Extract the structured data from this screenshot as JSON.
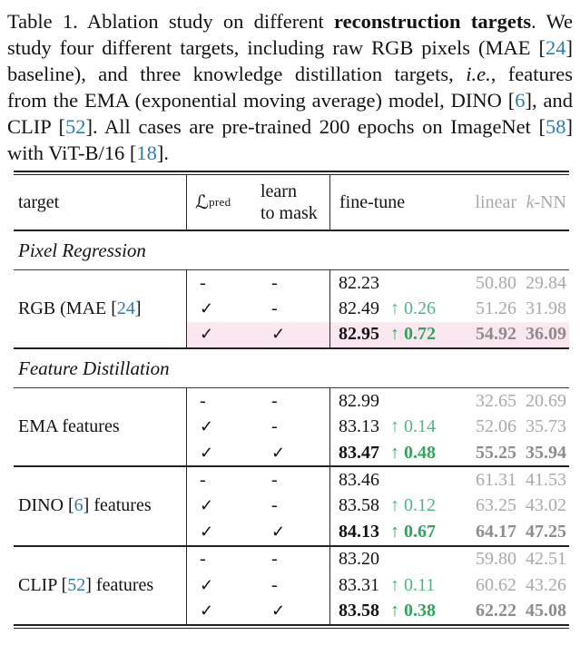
{
  "caption": {
    "lines": [
      [
        {
          "t": "Table 1. Ablation study on different "
        },
        {
          "t": "reconstruction targets",
          "b": true
        },
        {
          "t": ". We"
        }
      ],
      [
        {
          "t": "study four different targets, including raw RGB pixels (MAE ["
        },
        {
          "t": "24",
          "ref": true
        },
        {
          "t": "]"
        }
      ],
      [
        {
          "t": "baseline), and three knowledge distillation targets, "
        },
        {
          "t": "i.e.",
          "i": true
        },
        {
          "t": ", features"
        }
      ],
      [
        {
          "t": "from the EMA (exponential moving average) model, DINO ["
        },
        {
          "t": "6",
          "ref": true
        },
        {
          "t": "], and"
        }
      ],
      [
        {
          "t": "CLIP ["
        },
        {
          "t": "52",
          "ref": true
        },
        {
          "t": "]. All cases are pre-trained 200 epochs on ImageNet ["
        },
        {
          "t": "58",
          "ref": true
        },
        {
          "t": "]"
        }
      ],
      [
        {
          "t": "with ViT-B/16 ["
        },
        {
          "t": "18",
          "ref": true
        },
        {
          "t": "]."
        }
      ]
    ]
  },
  "table": {
    "header": {
      "target": "target",
      "lpred_letter": "ℒ",
      "lpred_sub": "pred",
      "mask_line1": "learn",
      "mask_line2": "to mask",
      "finetune": "fine-tune",
      "linear": "linear",
      "knn_k": "k",
      "knn_rest": "-NN"
    },
    "check_glyph": "✓",
    "dash_glyph": "-",
    "arrow_glyph": "↑",
    "sections": [
      {
        "title": "Pixel Regression",
        "groups": [
          {
            "target": [
              {
                "t": "RGB (MAE ["
              },
              {
                "t": "24",
                "ref": true
              },
              {
                "t": "]"
              }
            ],
            "rows": [
              {
                "lpred": "-",
                "mask": "-",
                "finetune": "82.23",
                "delta": null,
                "linear": "50.80",
                "knn": "29.84",
                "bold": false,
                "highlight": false
              },
              {
                "lpred": "✓",
                "mask": "-",
                "finetune": "82.49",
                "delta": "0.26",
                "linear": "51.26",
                "knn": "31.98",
                "bold": false,
                "highlight": false
              },
              {
                "lpred": "✓",
                "mask": "✓",
                "finetune": "82.95",
                "delta": "0.72",
                "linear": "54.92",
                "knn": "36.09",
                "bold": true,
                "highlight": true
              }
            ]
          }
        ]
      },
      {
        "title": "Feature Distillation",
        "groups": [
          {
            "target": [
              {
                "t": "EMA features"
              }
            ],
            "rows": [
              {
                "lpred": "-",
                "mask": "-",
                "finetune": "82.99",
                "delta": null,
                "linear": "32.65",
                "knn": "20.69",
                "bold": false,
                "highlight": false
              },
              {
                "lpred": "✓",
                "mask": "-",
                "finetune": "83.13",
                "delta": "0.14",
                "linear": "52.06",
                "knn": "35.73",
                "bold": false,
                "highlight": false
              },
              {
                "lpred": "✓",
                "mask": "✓",
                "finetune": "83.47",
                "delta": "0.48",
                "linear": "55.25",
                "knn": "35.94",
                "bold": true,
                "highlight": false
              }
            ]
          },
          {
            "target": [
              {
                "t": "DINO ["
              },
              {
                "t": "6",
                "ref": true
              },
              {
                "t": "] features"
              }
            ],
            "rows": [
              {
                "lpred": "-",
                "mask": "-",
                "finetune": "83.46",
                "delta": null,
                "linear": "61.31",
                "knn": "41.53",
                "bold": false,
                "highlight": false
              },
              {
                "lpred": "✓",
                "mask": "-",
                "finetune": "83.58",
                "delta": "0.12",
                "linear": "63.25",
                "knn": "43.02",
                "bold": false,
                "highlight": false
              },
              {
                "lpred": "✓",
                "mask": "✓",
                "finetune": "84.13",
                "delta": "0.67",
                "linear": "64.17",
                "knn": "47.25",
                "bold": true,
                "highlight": false
              }
            ]
          },
          {
            "target": [
              {
                "t": "CLIP ["
              },
              {
                "t": "52",
                "ref": true
              },
              {
                "t": "] features"
              }
            ],
            "rows": [
              {
                "lpred": "-",
                "mask": "-",
                "finetune": "83.20",
                "delta": null,
                "linear": "59.80",
                "knn": "42.51",
                "bold": false,
                "highlight": false
              },
              {
                "lpred": "✓",
                "mask": "-",
                "finetune": "83.31",
                "delta": "0.11",
                "linear": "60.62",
                "knn": "43.26",
                "bold": false,
                "highlight": false
              },
              {
                "lpred": "✓",
                "mask": "✓",
                "finetune": "83.58",
                "delta": "0.38",
                "linear": "62.22",
                "knn": "45.08",
                "bold": true,
                "highlight": false
              }
            ]
          }
        ]
      }
    ]
  },
  "colors": {
    "ref_blue": "#2b7cb3",
    "green": "#4eb584",
    "green_bold": "#2fa75a",
    "gray": "#a9a9a9",
    "gray_bold": "#8d8d8d",
    "highlight_pink": "#fbe7ef",
    "rule": "#1f1f1f"
  }
}
